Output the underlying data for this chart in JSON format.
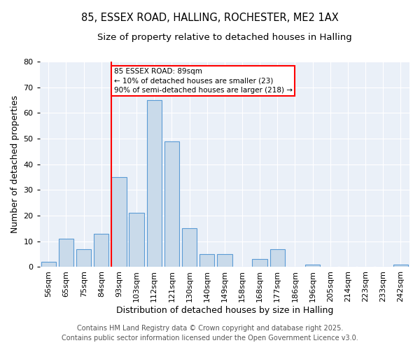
{
  "title1": "85, ESSEX ROAD, HALLING, ROCHESTER, ME2 1AX",
  "title2": "Size of property relative to detached houses in Halling",
  "xlabel": "Distribution of detached houses by size in Halling",
  "ylabel": "Number of detached properties",
  "bin_labels": [
    "56sqm",
    "65sqm",
    "75sqm",
    "84sqm",
    "93sqm",
    "103sqm",
    "112sqm",
    "121sqm",
    "130sqm",
    "140sqm",
    "149sqm",
    "158sqm",
    "168sqm",
    "177sqm",
    "186sqm",
    "196sqm",
    "205sqm",
    "214sqm",
    "223sqm",
    "233sqm",
    "242sqm"
  ],
  "bins": [
    56,
    65,
    75,
    84,
    93,
    103,
    112,
    121,
    130,
    140,
    149,
    158,
    168,
    177,
    186,
    196,
    205,
    214,
    223,
    233,
    242
  ],
  "counts": [
    2,
    11,
    7,
    13,
    35,
    21,
    65,
    49,
    15,
    5,
    5,
    0,
    3,
    7,
    0,
    1,
    0,
    0,
    0,
    0,
    1
  ],
  "bar_color": "#c9daea",
  "bar_edge_color": "#5b9bd5",
  "red_line_x": 89,
  "annotation_line1": "85 ESSEX ROAD: 89sqm",
  "annotation_line2": "← 10% of detached houses are smaller (23)",
  "annotation_line3": "90% of semi-detached houses are larger (218) →",
  "annotation_box_color": "white",
  "annotation_box_edge_color": "red",
  "ylim": [
    0,
    80
  ],
  "yticks": [
    0,
    10,
    20,
    30,
    40,
    50,
    60,
    70,
    80
  ],
  "bg_color": "#eaf0f8",
  "footer1": "Contains HM Land Registry data © Crown copyright and database right 2025.",
  "footer2": "Contains public sector information licensed under the Open Government Licence v3.0.",
  "title1_fontsize": 10.5,
  "title2_fontsize": 9.5,
  "axis_label_fontsize": 9,
  "tick_fontsize": 8,
  "footer_fontsize": 7
}
